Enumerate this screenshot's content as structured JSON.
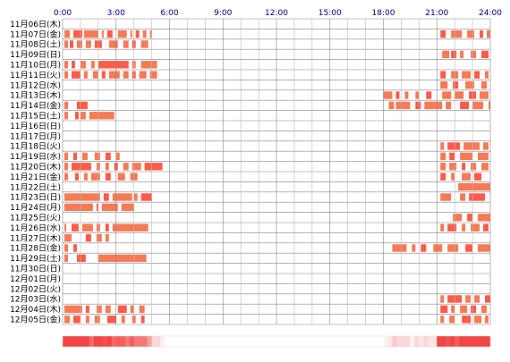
{
  "chart_data": {
    "type": "heatmap",
    "x_ticks": [
      "0:00",
      "3:00",
      "6:00",
      "9:00",
      "12:00",
      "15:00",
      "18:00",
      "21:00",
      "24:00"
    ],
    "x_range_hours": [
      0,
      24
    ],
    "days": [
      "11月06日(木)",
      "11月07日(金)",
      "11月08日(土)",
      "11月09日(日)",
      "11月10日(月)",
      "11月11日(火)",
      "11月12日(水)",
      "11月13日(木)",
      "11月14日(金)",
      "11月15日(土)",
      "11月16日(日)",
      "11月17日(月)",
      "11月18日(火)",
      "11月19日(水)",
      "11月20日(木)",
      "11月21日(金)",
      "11月22日(土)",
      "11月23日(日)",
      "11月24日(月)",
      "11月25日(火)",
      "11月26日(水)",
      "11月27日(木)",
      "11月28日(金)",
      "11月29日(土)",
      "11月30日(日)",
      "12月01日(月)",
      "12月02日(火)",
      "12月03日(水)",
      "12月04日(木)",
      "12月05日(金)"
    ],
    "activity": [
      [],
      [
        [
          0.1,
          0.4
        ],
        [
          0.6,
          1.1
        ],
        [
          1.2,
          2.0
        ],
        [
          2.2,
          2.3
        ],
        [
          2.5,
          2.8
        ],
        [
          3.1,
          3.6
        ],
        [
          3.8,
          3.9
        ],
        [
          4.1,
          4.3
        ],
        [
          4.5,
          4.7
        ],
        [
          4.9,
          5.0
        ],
        [
          21.2,
          21.5
        ],
        [
          21.8,
          22.4
        ],
        [
          22.7,
          23.1
        ],
        [
          23.4,
          23.6
        ],
        [
          23.8,
          24.0
        ]
      ],
      [
        [
          0.1,
          0.3
        ],
        [
          0.4,
          0.6
        ],
        [
          0.8,
          1.1
        ],
        [
          1.3,
          1.6
        ],
        [
          1.8,
          2.2
        ],
        [
          2.6,
          3.1
        ],
        [
          3.4,
          3.7
        ],
        [
          3.9,
          4.1
        ],
        [
          4.4,
          4.8
        ]
      ],
      [
        [
          21.3,
          21.7
        ],
        [
          21.8,
          22.1
        ],
        [
          22.3,
          22.5
        ],
        [
          22.9,
          23.2
        ],
        [
          23.5,
          23.9
        ]
      ],
      [
        [
          0.1,
          0.3
        ],
        [
          0.5,
          0.7
        ],
        [
          1.0,
          1.3
        ],
        [
          1.6,
          1.8
        ],
        [
          2.0,
          3.7
        ],
        [
          3.9,
          4.1
        ],
        [
          4.4,
          5.3
        ]
      ],
      [
        [
          0.1,
          0.3
        ],
        [
          0.5,
          1.0
        ],
        [
          1.2,
          1.4
        ],
        [
          1.7,
          2.0
        ],
        [
          2.2,
          2.4
        ],
        [
          2.6,
          3.2
        ],
        [
          3.4,
          3.7
        ],
        [
          3.9,
          4.1
        ],
        [
          4.3,
          4.7
        ],
        [
          4.9,
          5.3
        ],
        [
          21.2,
          21.5
        ],
        [
          21.8,
          22.2
        ],
        [
          22.4,
          22.9
        ],
        [
          23.1,
          23.4
        ],
        [
          23.7,
          23.9
        ]
      ],
      [
        [
          21.2,
          21.6
        ],
        [
          21.9,
          22.2
        ],
        [
          22.6,
          23.1
        ],
        [
          23.5,
          23.8
        ]
      ],
      [
        [
          18.0,
          18.5
        ],
        [
          18.7,
          18.9
        ],
        [
          19.2,
          19.4
        ],
        [
          19.8,
          20.0
        ],
        [
          20.4,
          20.7
        ],
        [
          21.3,
          21.8
        ],
        [
          22.0,
          22.5
        ],
        [
          22.8,
          23.2
        ],
        [
          23.4,
          23.9
        ]
      ],
      [
        [
          0.1,
          0.3
        ],
        [
          0.8,
          1.4
        ],
        [
          18.3,
          18.6
        ],
        [
          18.7,
          19.5
        ],
        [
          19.8,
          20.1
        ],
        [
          20.3,
          21.3
        ],
        [
          21.5,
          21.8
        ],
        [
          22.3,
          22.8
        ],
        [
          23.0,
          23.6
        ],
        [
          23.9,
          24.0
        ]
      ],
      [
        [
          0.1,
          0.3
        ],
        [
          0.7,
          0.9
        ],
        [
          1.0,
          1.3
        ],
        [
          1.5,
          2.9
        ]
      ],
      [],
      [],
      [
        [
          21.2,
          21.4
        ],
        [
          21.6,
          22.3
        ],
        [
          22.5,
          23.4
        ],
        [
          23.6,
          23.9
        ]
      ],
      [
        [
          0.1,
          0.3
        ],
        [
          0.6,
          0.8
        ],
        [
          1.1,
          1.4
        ],
        [
          1.8,
          2.1
        ],
        [
          2.4,
          2.7
        ],
        [
          3.0,
          3.2
        ],
        [
          21.2,
          21.5
        ],
        [
          21.7,
          22.0
        ],
        [
          22.3,
          23.0
        ],
        [
          23.3,
          23.9
        ]
      ],
      [
        [
          0.1,
          0.3
        ],
        [
          0.5,
          1.6
        ],
        [
          1.9,
          2.1
        ],
        [
          2.4,
          2.6
        ],
        [
          2.9,
          3.1
        ],
        [
          3.4,
          3.7
        ],
        [
          3.9,
          4.4
        ],
        [
          4.6,
          5.6
        ],
        [
          21.2,
          21.5
        ],
        [
          21.7,
          22.1
        ],
        [
          22.4,
          22.6
        ],
        [
          22.9,
          23.2
        ],
        [
          23.5,
          23.9
        ]
      ],
      [
        [
          0.1,
          0.3
        ],
        [
          0.7,
          0.9
        ],
        [
          1.2,
          1.4
        ],
        [
          1.6,
          2.1
        ],
        [
          2.4,
          2.7
        ],
        [
          3.1,
          3.5
        ],
        [
          3.8,
          4.2
        ],
        [
          21.2,
          21.5
        ],
        [
          21.8,
          22.0
        ],
        [
          22.4,
          22.9
        ],
        [
          23.1,
          23.5
        ]
      ],
      [
        [
          22.2,
          24.0
        ]
      ],
      [
        [
          0.1,
          2.1
        ],
        [
          2.3,
          2.6
        ],
        [
          2.8,
          3.9
        ],
        [
          4.0,
          4.2
        ],
        [
          4.4,
          5.0
        ],
        [
          21.2,
          21.8
        ],
        [
          22.3,
          22.6
        ],
        [
          22.8,
          23.7
        ]
      ],
      [
        [
          0.1,
          1.7
        ],
        [
          1.9,
          2.0
        ],
        [
          2.2,
          3.1
        ],
        [
          3.3,
          4.0
        ]
      ],
      [
        [
          21.9,
          22.4
        ],
        [
          22.7,
          23.0
        ],
        [
          23.3,
          24.0
        ]
      ],
      [
        [
          0.1,
          0.2
        ],
        [
          0.5,
          0.9
        ],
        [
          1.1,
          1.7
        ],
        [
          1.9,
          2.1
        ],
        [
          2.4,
          2.6
        ],
        [
          2.8,
          4.8
        ],
        [
          21.2,
          21.4
        ],
        [
          21.6,
          22.1
        ],
        [
          22.4,
          22.6
        ],
        [
          22.9,
          23.4
        ],
        [
          23.6,
          23.9
        ]
      ],
      [
        [
          0.1,
          0.5
        ],
        [
          1.3,
          1.6
        ],
        [
          1.9,
          2.2
        ],
        [
          2.4,
          2.6
        ]
      ],
      [
        [
          0.1,
          0.3
        ],
        [
          0.6,
          0.8
        ],
        [
          18.5,
          19.3
        ],
        [
          19.6,
          19.8
        ],
        [
          20.1,
          20.4
        ],
        [
          20.8,
          21.3
        ],
        [
          21.6,
          22.2
        ],
        [
          22.6,
          23.0
        ],
        [
          23.3,
          24.0
        ]
      ],
      [
        [
          0.1,
          0.3
        ],
        [
          0.8,
          1.3
        ],
        [
          2.0,
          4.7
        ]
      ],
      [],
      [],
      [],
      [
        [
          21.2,
          21.4
        ],
        [
          21.6,
          22.4
        ],
        [
          22.6,
          22.9
        ],
        [
          23.1,
          23.4
        ],
        [
          23.7,
          24.0
        ]
      ],
      [
        [
          0.1,
          1.1
        ],
        [
          1.3,
          1.5
        ],
        [
          1.9,
          2.2
        ],
        [
          2.4,
          2.7
        ],
        [
          3.1,
          3.6
        ],
        [
          3.8,
          4.0
        ],
        [
          4.3,
          4.6
        ],
        [
          21.2,
          21.6
        ],
        [
          21.8,
          22.0
        ],
        [
          22.3,
          22.7
        ],
        [
          22.9,
          23.2
        ],
        [
          23.5,
          23.8
        ]
      ],
      [
        [
          0.1,
          0.4
        ],
        [
          0.6,
          1.0
        ],
        [
          1.3,
          1.5
        ],
        [
          1.8,
          2.1
        ],
        [
          2.5,
          3.0
        ],
        [
          3.3,
          3.5
        ],
        [
          3.9,
          4.1
        ],
        [
          4.4,
          4.6
        ],
        [
          21.2,
          21.4
        ],
        [
          21.7,
          22.0
        ],
        [
          22.4,
          22.9
        ],
        [
          23.1,
          23.5
        ],
        [
          23.7,
          23.9
        ]
      ]
    ],
    "summary_strip": {
      "description": "hourly density of activity across all days",
      "from_color": "#ffffff",
      "to_color": "#f24545"
    },
    "colors": {
      "bar": "#f57a55",
      "bar_highlight": "#ff5a4a",
      "grid": "#888888",
      "grid_light": "#bbbbbb",
      "tick_label": "#000080",
      "day_label": "#000000"
    }
  }
}
